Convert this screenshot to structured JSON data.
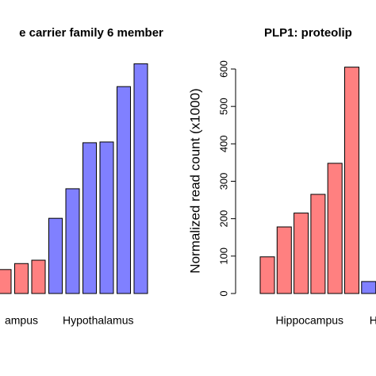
{
  "chart_data": [
    {
      "type": "bar",
      "title": "e carrier family 6 member",
      "series": [
        {
          "name": "ampus",
          "color": "#ff8080",
          "values": [
            64,
            80,
            89
          ]
        },
        {
          "name": "Hypothalamus",
          "color": "#8080ff",
          "values": [
            201,
            280,
            403,
            405,
            553,
            614
          ]
        }
      ],
      "ylim": [
        0,
        600
      ]
    },
    {
      "type": "bar",
      "title": "PLP1: proteolip",
      "y_label": "Normalized read count (x1000)",
      "series": [
        {
          "name": "Hippocampus",
          "color": "#ff8080",
          "values": [
            98,
            178,
            215,
            265,
            348,
            605
          ]
        },
        {
          "name": "H",
          "color": "#8080ff",
          "values": [
            32
          ]
        }
      ],
      "ylim": [
        0,
        600
      ],
      "yticks": [
        0,
        100,
        200,
        300,
        400,
        500,
        600
      ]
    }
  ]
}
